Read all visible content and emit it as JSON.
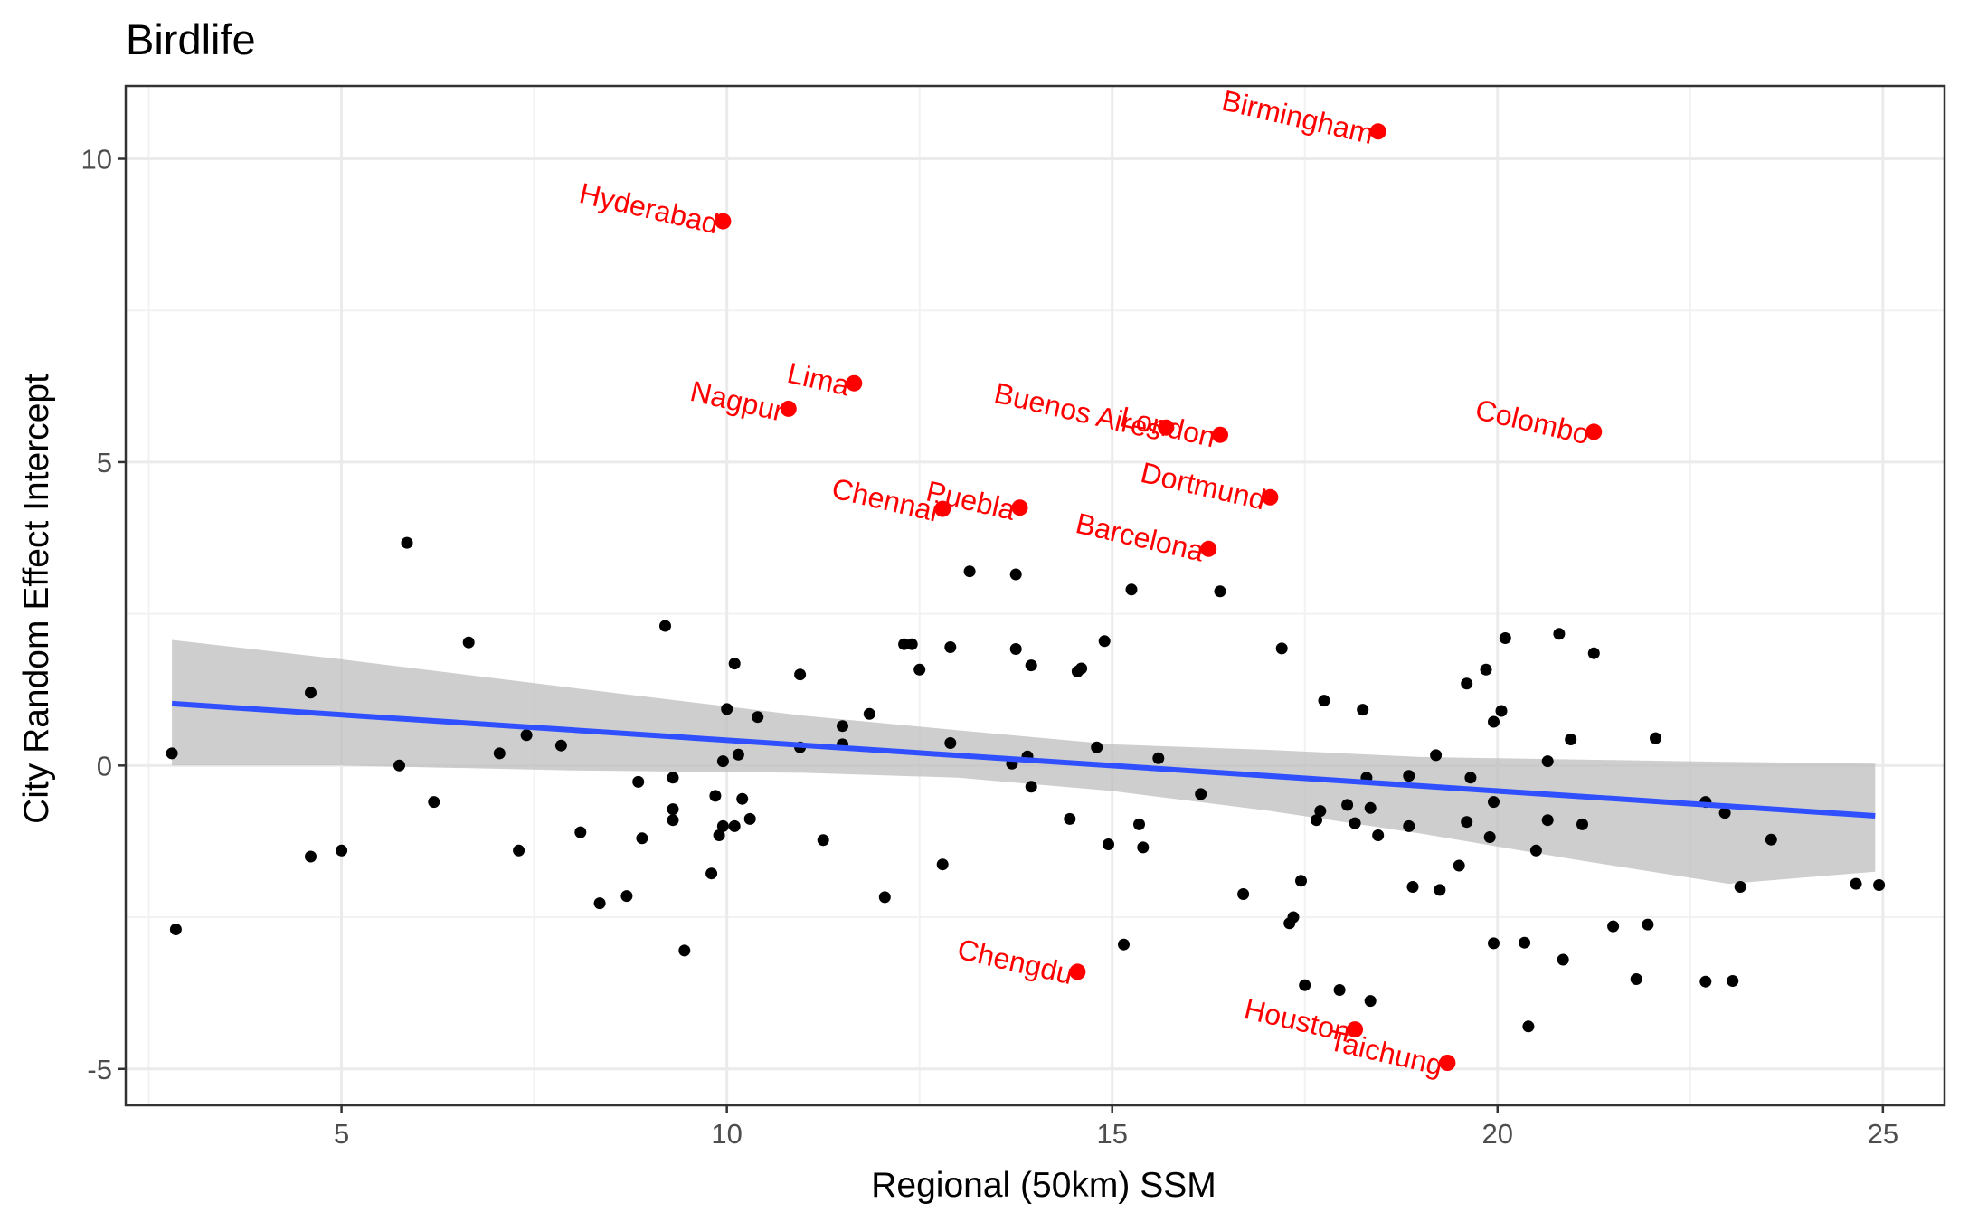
{
  "chart_data": {
    "type": "scatter",
    "title": "Birdlife",
    "xlabel": "Regional (50km) SSM",
    "ylabel": "City Random Effect Intercept",
    "xlim": [
      2.2,
      25.8
    ],
    "ylim": [
      -5.6,
      11.2
    ],
    "x_ticks": [
      5,
      10,
      15,
      20,
      25
    ],
    "y_ticks": [
      -5,
      0,
      5,
      10
    ],
    "grid": true,
    "colors": {
      "points": "#000000",
      "highlight": "#ff0000",
      "trend_line": "#3050ff",
      "ribbon": "#bebebe",
      "panel_border": "#333333",
      "grid_major": "#ebebeb",
      "grid_minor": "#f2f2f2"
    },
    "trend": {
      "x0": 2.8,
      "y0": 1.02,
      "x1": 24.9,
      "y1": -0.83
    },
    "ribbon": [
      {
        "x": 2.8,
        "low": 0.0,
        "high": 2.07
      },
      {
        "x": 5.0,
        "low": 0.0,
        "high": 1.75
      },
      {
        "x": 8.0,
        "low": -0.08,
        "high": 1.28
      },
      {
        "x": 11.0,
        "low": -0.12,
        "high": 0.82
      },
      {
        "x": 13.0,
        "low": -0.2,
        "high": 0.58
      },
      {
        "x": 15.0,
        "low": -0.42,
        "high": 0.35
      },
      {
        "x": 17.0,
        "low": -0.74,
        "high": 0.26
      },
      {
        "x": 19.0,
        "low": -1.12,
        "high": 0.14
      },
      {
        "x": 21.0,
        "low": -1.55,
        "high": 0.1
      },
      {
        "x": 23.0,
        "low": -1.95,
        "high": 0.06
      },
      {
        "x": 24.9,
        "low": -1.75,
        "high": 0.03
      }
    ],
    "series": [
      {
        "values": [
          [
            2.8,
            0.2
          ],
          [
            2.85,
            -2.7
          ],
          [
            4.6,
            1.2
          ],
          [
            4.6,
            -1.5
          ],
          [
            5.0,
            -1.4
          ],
          [
            5.75,
            0.0
          ],
          [
            5.85,
            3.67
          ],
          [
            6.2,
            -0.6
          ],
          [
            6.65,
            2.03
          ],
          [
            7.05,
            0.2
          ],
          [
            7.3,
            -1.4
          ],
          [
            7.4,
            0.5
          ],
          [
            7.85,
            0.33
          ],
          [
            8.1,
            -1.1
          ],
          [
            8.35,
            -2.27
          ],
          [
            8.7,
            -2.15
          ],
          [
            8.85,
            -0.27
          ],
          [
            8.9,
            -1.2
          ],
          [
            9.2,
            2.3
          ],
          [
            9.3,
            -0.72
          ],
          [
            9.3,
            -0.9
          ],
          [
            9.3,
            -0.2
          ],
          [
            9.45,
            -3.05
          ],
          [
            9.8,
            -1.78
          ],
          [
            9.85,
            -0.5
          ],
          [
            9.9,
            -1.15
          ],
          [
            9.95,
            0.07
          ],
          [
            9.95,
            -1.0
          ],
          [
            10.0,
            0.93
          ],
          [
            10.1,
            -1.0
          ],
          [
            10.1,
            1.68
          ],
          [
            10.15,
            0.18
          ],
          [
            10.2,
            -0.55
          ],
          [
            10.3,
            -0.88
          ],
          [
            10.4,
            0.8
          ],
          [
            10.95,
            0.3
          ],
          [
            10.95,
            1.5
          ],
          [
            11.25,
            -1.23
          ],
          [
            11.5,
            0.65
          ],
          [
            11.5,
            0.35
          ],
          [
            11.85,
            0.85
          ],
          [
            12.05,
            -2.17
          ],
          [
            12.3,
            2.0
          ],
          [
            12.4,
            2.0
          ],
          [
            12.5,
            1.58
          ],
          [
            12.8,
            -1.63
          ],
          [
            12.9,
            0.37
          ],
          [
            12.9,
            1.95
          ],
          [
            13.15,
            3.2
          ],
          [
            13.7,
            0.03
          ],
          [
            13.75,
            1.92
          ],
          [
            13.75,
            3.15
          ],
          [
            13.9,
            0.15
          ],
          [
            13.95,
            1.65
          ],
          [
            13.95,
            -0.35
          ],
          [
            14.45,
            -0.88
          ],
          [
            14.55,
            1.55
          ],
          [
            14.6,
            1.6
          ],
          [
            14.8,
            0.3
          ],
          [
            14.9,
            2.05
          ],
          [
            14.95,
            -1.3
          ],
          [
            15.15,
            -2.95
          ],
          [
            15.25,
            2.9
          ],
          [
            15.35,
            -0.97
          ],
          [
            15.4,
            -1.35
          ],
          [
            15.6,
            0.12
          ],
          [
            16.15,
            -0.47
          ],
          [
            16.4,
            2.87
          ],
          [
            16.7,
            -2.12
          ],
          [
            17.2,
            1.93
          ],
          [
            17.3,
            -2.6
          ],
          [
            17.35,
            -2.5
          ],
          [
            17.45,
            -1.9
          ],
          [
            17.5,
            -3.62
          ],
          [
            17.65,
            -0.9
          ],
          [
            17.7,
            -0.75
          ],
          [
            17.75,
            1.07
          ],
          [
            17.95,
            -3.7
          ],
          [
            18.05,
            -0.65
          ],
          [
            18.15,
            -0.95
          ],
          [
            18.25,
            0.92
          ],
          [
            18.3,
            -0.2
          ],
          [
            18.35,
            -0.7
          ],
          [
            18.35,
            -3.88
          ],
          [
            18.45,
            -1.15
          ],
          [
            18.85,
            -0.17
          ],
          [
            18.85,
            -1.0
          ],
          [
            18.9,
            -2.0
          ],
          [
            19.2,
            0.17
          ],
          [
            19.25,
            -2.05
          ],
          [
            19.5,
            -1.65
          ],
          [
            19.6,
            -0.93
          ],
          [
            19.6,
            1.35
          ],
          [
            19.65,
            -0.2
          ],
          [
            19.85,
            1.58
          ],
          [
            19.9,
            -1.18
          ],
          [
            19.95,
            0.72
          ],
          [
            19.95,
            -0.6
          ],
          [
            19.95,
            -2.93
          ],
          [
            20.05,
            0.9
          ],
          [
            20.1,
            2.1
          ],
          [
            20.35,
            -2.92
          ],
          [
            20.4,
            -4.3
          ],
          [
            20.5,
            -1.4
          ],
          [
            20.65,
            0.07
          ],
          [
            20.65,
            -0.9
          ],
          [
            20.8,
            2.17
          ],
          [
            20.85,
            -3.2
          ],
          [
            20.95,
            0.43
          ],
          [
            21.1,
            -0.97
          ],
          [
            21.25,
            1.85
          ],
          [
            21.5,
            -2.65
          ],
          [
            21.8,
            -3.52
          ],
          [
            21.95,
            -2.62
          ],
          [
            22.05,
            0.45
          ],
          [
            22.7,
            -3.56
          ],
          [
            22.7,
            -0.6
          ],
          [
            22.95,
            -0.78
          ],
          [
            23.05,
            -3.55
          ],
          [
            23.15,
            -2.0
          ],
          [
            23.55,
            -1.22
          ],
          [
            24.65,
            -1.95
          ],
          [
            24.95,
            -1.97
          ]
        ]
      }
    ],
    "highlighted": [
      {
        "x": 18.45,
        "y": 10.45,
        "label": "Birmingham"
      },
      {
        "x": 9.95,
        "y": 8.97,
        "label": "Hyderabad"
      },
      {
        "x": 11.65,
        "y": 6.3,
        "label": "Lima"
      },
      {
        "x": 10.8,
        "y": 5.88,
        "label": "Nagpur"
      },
      {
        "x": 15.7,
        "y": 5.57,
        "label": "Buenos Aires"
      },
      {
        "x": 16.4,
        "y": 5.45,
        "label": "London"
      },
      {
        "x": 21.25,
        "y": 5.5,
        "label": "Colombo"
      },
      {
        "x": 17.05,
        "y": 4.42,
        "label": "Dortmund"
      },
      {
        "x": 12.8,
        "y": 4.23,
        "label": "Chennai"
      },
      {
        "x": 13.8,
        "y": 4.25,
        "label": "Puebla"
      },
      {
        "x": 16.25,
        "y": 3.57,
        "label": "Barcelona"
      },
      {
        "x": 14.55,
        "y": -3.4,
        "label": "Chengdu"
      },
      {
        "x": 18.15,
        "y": -4.35,
        "label": "Houston"
      },
      {
        "x": 19.35,
        "y": -4.9,
        "label": "Taichung"
      }
    ]
  }
}
